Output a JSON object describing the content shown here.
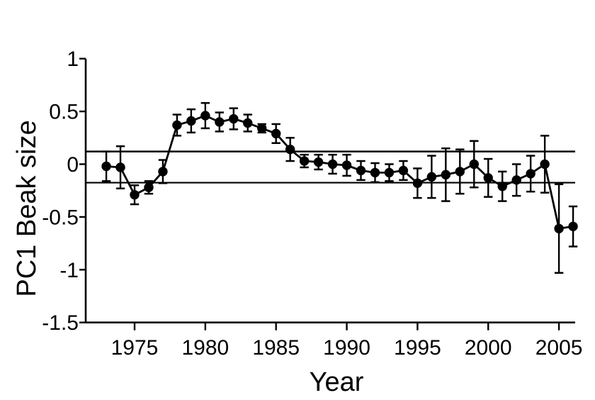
{
  "figure": {
    "background": "#ffffff",
    "ink_color": "#000000",
    "description": "Scatter-line plot of PC1 beak size by year with error bars and two horizontal reference lines"
  },
  "chart_data": {
    "type": "line",
    "title": "",
    "xlabel": "Year",
    "ylabel": "PC1 Beak size",
    "xlim": [
      1971.5,
      2006.2
    ],
    "ylim": [
      -1.5,
      1
    ],
    "x_ticks": [
      1975,
      1980,
      1985,
      1990,
      1995,
      2000,
      2005
    ],
    "y_ticks": [
      1,
      0.5,
      0,
      -0.5,
      -1,
      -1.5
    ],
    "y_tick_labels": [
      "1",
      "0.5",
      "0",
      "-0.5",
      "-1",
      "-1.5"
    ],
    "x_tick_labels": [
      "1975",
      "1980",
      "1985",
      "1990",
      "1995",
      "2000",
      "2005"
    ],
    "grid": false,
    "legend_position": "none",
    "reference_lines": [
      0.12,
      -0.175
    ],
    "series": [
      {
        "name": "PC1 beak size mean with error bars",
        "marker": "filled-circle",
        "x": [
          1973,
          1974,
          1975,
          1976,
          1977,
          1978,
          1979,
          1980,
          1981,
          1982,
          1983,
          1984,
          1985,
          1986,
          1987,
          1988,
          1989,
          1990,
          1991,
          1992,
          1993,
          1994,
          1995,
          1996,
          1997,
          1998,
          1999,
          2000,
          2001,
          2002,
          2003,
          2004,
          2005,
          2006
        ],
        "y": [
          -0.02,
          -0.03,
          -0.29,
          -0.22,
          -0.07,
          0.37,
          0.41,
          0.46,
          0.4,
          0.43,
          0.39,
          0.34,
          0.29,
          0.14,
          0.03,
          0.02,
          0.0,
          -0.01,
          -0.06,
          -0.08,
          -0.08,
          -0.06,
          -0.18,
          -0.12,
          -0.1,
          -0.07,
          0.0,
          -0.13,
          -0.21,
          -0.15,
          -0.09,
          0.0,
          -0.61,
          -0.59
        ],
        "yerr": [
          0.14,
          0.2,
          0.09,
          0.06,
          0.11,
          0.1,
          0.11,
          0.12,
          0.09,
          0.1,
          0.08,
          0.04,
          0.09,
          0.11,
          0.06,
          0.07,
          0.09,
          0.1,
          0.09,
          0.09,
          0.08,
          0.09,
          0.14,
          0.2,
          0.25,
          0.21,
          0.22,
          0.18,
          0.14,
          0.15,
          0.17,
          0.27,
          0.42,
          0.19
        ]
      }
    ]
  }
}
